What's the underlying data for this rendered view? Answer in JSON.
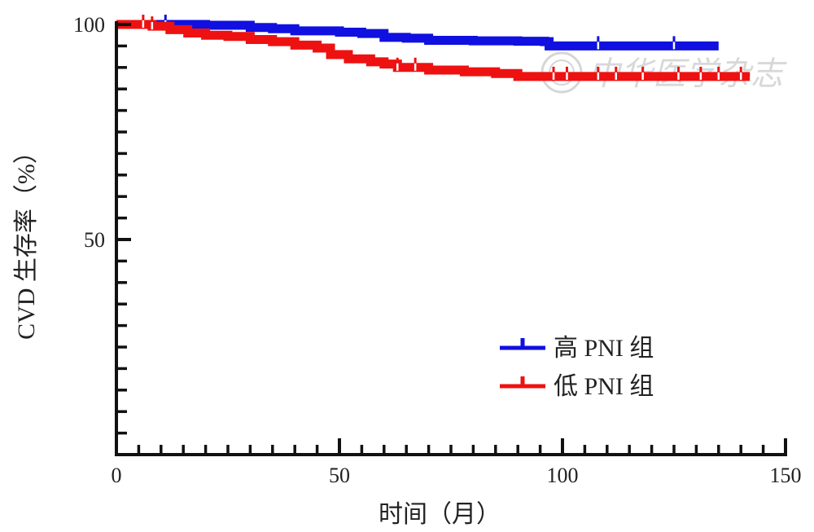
{
  "chart_data": {
    "type": "line",
    "xlabel": "时间（月）",
    "ylabel": "CVD 生存率（%）",
    "xlim": [
      0,
      150
    ],
    "ylim": [
      0,
      100
    ],
    "x_ticks": [
      "0",
      "50",
      "100",
      "150"
    ],
    "y_ticks": [
      "50",
      "100"
    ],
    "grid": false,
    "legend_position": "bottom-right",
    "step": true,
    "series": [
      {
        "name": "高 PNI 组",
        "color": "#1010e0",
        "points": [
          [
            0,
            100
          ],
          [
            5,
            100
          ],
          [
            10,
            100
          ],
          [
            20,
            99.8
          ],
          [
            30,
            99.3
          ],
          [
            35,
            99.0
          ],
          [
            40,
            98.5
          ],
          [
            50,
            98.2
          ],
          [
            55,
            97.9
          ],
          [
            60,
            97.0
          ],
          [
            65,
            96.8
          ],
          [
            70,
            96.3
          ],
          [
            80,
            96.2
          ],
          [
            90,
            96.1
          ],
          [
            96,
            96.0
          ],
          [
            97,
            95.0
          ],
          [
            110,
            95.0
          ],
          [
            125,
            95.0
          ],
          [
            135,
            95.0
          ]
        ],
        "censor_marks": [
          11,
          108,
          125
        ]
      },
      {
        "name": "低 PNI 组",
        "color": "#ee1111",
        "points": [
          [
            0,
            100
          ],
          [
            8,
            99.6
          ],
          [
            12,
            98.8
          ],
          [
            16,
            98.0
          ],
          [
            20,
            97.5
          ],
          [
            25,
            97.2
          ],
          [
            30,
            96.5
          ],
          [
            35,
            96.0
          ],
          [
            40,
            95.2
          ],
          [
            45,
            94.5
          ],
          [
            48,
            93.0
          ],
          [
            52,
            92.0
          ],
          [
            57,
            91.3
          ],
          [
            60,
            90.8
          ],
          [
            63,
            90.0
          ],
          [
            70,
            89.4
          ],
          [
            78,
            89.0
          ],
          [
            85,
            88.6
          ],
          [
            90,
            87.9
          ],
          [
            100,
            87.9
          ],
          [
            130,
            87.9
          ],
          [
            142,
            87.9
          ]
        ],
        "censor_marks": [
          6,
          8,
          63,
          67,
          98,
          101,
          108,
          112,
          118,
          126,
          131,
          135,
          140
        ]
      }
    ]
  },
  "watermark": {
    "text": "中华医学杂志",
    "kind": "watermark-logo"
  }
}
